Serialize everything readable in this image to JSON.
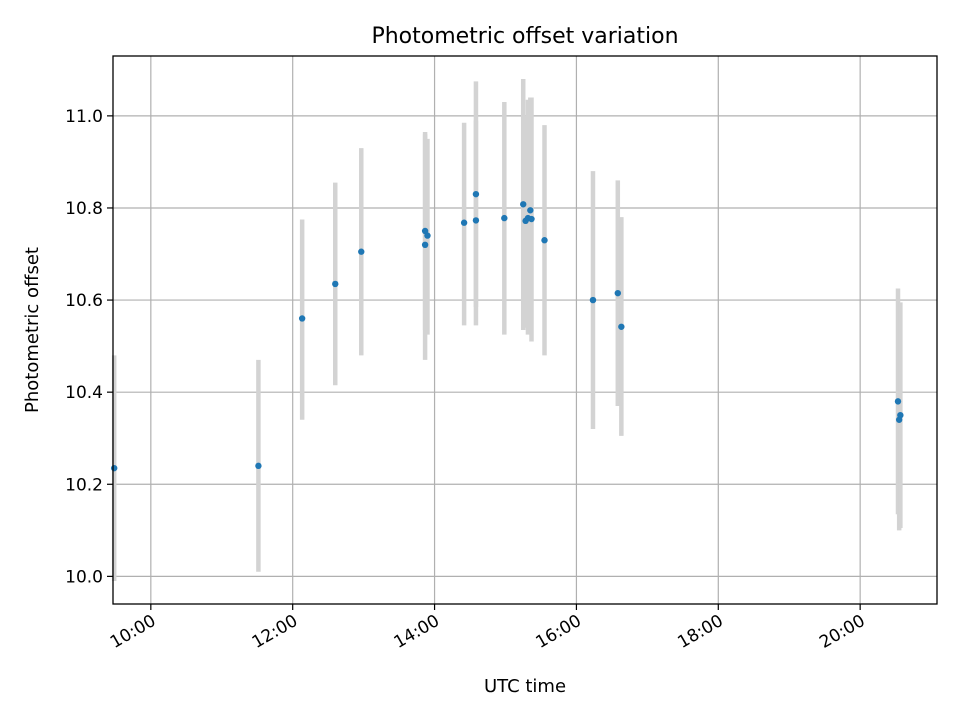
{
  "chart_data": {
    "type": "scatter",
    "title": "Photometric offset variation",
    "xlabel": "UTC time",
    "ylabel": "Photometric offset",
    "xlim": [
      "09:28",
      "21:05"
    ],
    "ylim": [
      9.94,
      11.13
    ],
    "xticks": [
      "10:00",
      "12:00",
      "14:00",
      "16:00",
      "18:00",
      "20:00"
    ],
    "yticks": [
      "10.0",
      "10.2",
      "10.4",
      "10.6",
      "10.8",
      "11.0"
    ],
    "grid": true,
    "colors": {
      "point": "#1f77b4",
      "errorbar": "#d3d3d3"
    },
    "points": [
      {
        "x": "09:29",
        "y": 10.235,
        "ylow": 9.99,
        "yhigh": 10.48
      },
      {
        "x": "11:31",
        "y": 10.24,
        "ylow": 10.01,
        "yhigh": 10.47
      },
      {
        "x": "12:08",
        "y": 10.56,
        "ylow": 10.34,
        "yhigh": 10.775
      },
      {
        "x": "12:36",
        "y": 10.635,
        "ylow": 10.415,
        "yhigh": 10.855
      },
      {
        "x": "12:58",
        "y": 10.705,
        "ylow": 10.48,
        "yhigh": 10.93
      },
      {
        "x": "13:52",
        "y": 10.75,
        "ylow": 10.535,
        "yhigh": 10.965
      },
      {
        "x": "13:52",
        "y": 10.72,
        "ylow": 10.47,
        "yhigh": 10.96
      },
      {
        "x": "13:54",
        "y": 10.74,
        "ylow": 10.525,
        "yhigh": 10.95
      },
      {
        "x": "14:25",
        "y": 10.768,
        "ylow": 10.545,
        "yhigh": 10.985
      },
      {
        "x": "14:35",
        "y": 10.83,
        "ylow": 10.585,
        "yhigh": 11.075
      },
      {
        "x": "14:35",
        "y": 10.773,
        "ylow": 10.545,
        "yhigh": 10.99
      },
      {
        "x": "14:59",
        "y": 10.778,
        "ylow": 10.525,
        "yhigh": 11.03
      },
      {
        "x": "15:15",
        "y": 10.808,
        "ylow": 10.535,
        "yhigh": 11.08
      },
      {
        "x": "15:17",
        "y": 10.772,
        "ylow": 10.54,
        "yhigh": 11.0
      },
      {
        "x": "15:19",
        "y": 10.778,
        "ylow": 10.525,
        "yhigh": 11.035
      },
      {
        "x": "15:21",
        "y": 10.795,
        "ylow": 10.545,
        "yhigh": 11.04
      },
      {
        "x": "15:22",
        "y": 10.776,
        "ylow": 10.51,
        "yhigh": 11.04
      },
      {
        "x": "15:33",
        "y": 10.73,
        "ylow": 10.48,
        "yhigh": 10.98
      },
      {
        "x": "16:14",
        "y": 10.6,
        "ylow": 10.32,
        "yhigh": 10.88
      },
      {
        "x": "16:35",
        "y": 10.615,
        "ylow": 10.37,
        "yhigh": 10.86
      },
      {
        "x": "16:38",
        "y": 10.542,
        "ylow": 10.305,
        "yhigh": 10.78
      },
      {
        "x": "20:32",
        "y": 10.38,
        "ylow": 10.135,
        "yhigh": 10.625
      },
      {
        "x": "20:33",
        "y": 10.34,
        "ylow": 10.1,
        "yhigh": 10.58
      },
      {
        "x": "20:34",
        "y": 10.35,
        "ylow": 10.105,
        "yhigh": 10.595
      }
    ]
  }
}
